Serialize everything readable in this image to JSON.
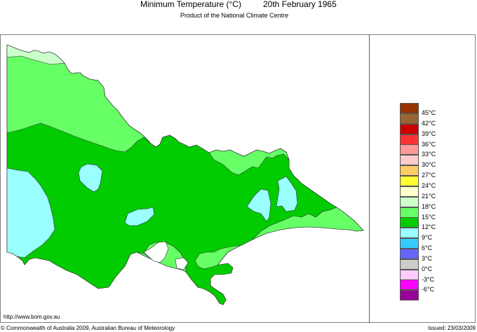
{
  "header": {
    "title": "Minimum Temperature (°C)",
    "date": "20th February 1965",
    "subtitle": "Product of the National Climate Centre"
  },
  "footer": {
    "url": "http://www.bom.gov.au",
    "copyright": "© Commonwealth of Australia 2009, Australian Bureau of Meteorology",
    "issued": "Issued: 23/03/2009"
  },
  "map": {
    "region": "Victoria",
    "colors": {
      "c21": "#ccffcc",
      "c18": "#66ff66",
      "c15": "#00cc00",
      "c12": "#99ffff",
      "outline": "#333333"
    }
  },
  "legend": {
    "items": [
      {
        "label": "45°C",
        "color": "#993300"
      },
      {
        "label": "42°C",
        "color": "#996633"
      },
      {
        "label": "39°C",
        "color": "#cc0000"
      },
      {
        "label": "36°C",
        "color": "#ff3333"
      },
      {
        "label": "33°C",
        "color": "#ff9999"
      },
      {
        "label": "30°C",
        "color": "#ffcccc"
      },
      {
        "label": "27°C",
        "color": "#ffcc66"
      },
      {
        "label": "24°C",
        "color": "#ffff33"
      },
      {
        "label": "21°C",
        "color": "#ffffcc"
      },
      {
        "label": "18°C",
        "color": "#ccffcc"
      },
      {
        "label": "15°C",
        "color": "#66ff66"
      },
      {
        "label": "12°C",
        "color": "#00cc00"
      },
      {
        "label": "9°C",
        "color": "#99ffff"
      },
      {
        "label": "6°C",
        "color": "#33ccff"
      },
      {
        "label": "3°C",
        "color": "#6666ff"
      },
      {
        "label": "0°C",
        "color": "#cccccc"
      },
      {
        "label": "-3°C",
        "color": "#ffccff"
      },
      {
        "label": "-6°C",
        "color": "#ff00ff"
      },
      {
        "label": "",
        "color": "#990099"
      }
    ]
  }
}
